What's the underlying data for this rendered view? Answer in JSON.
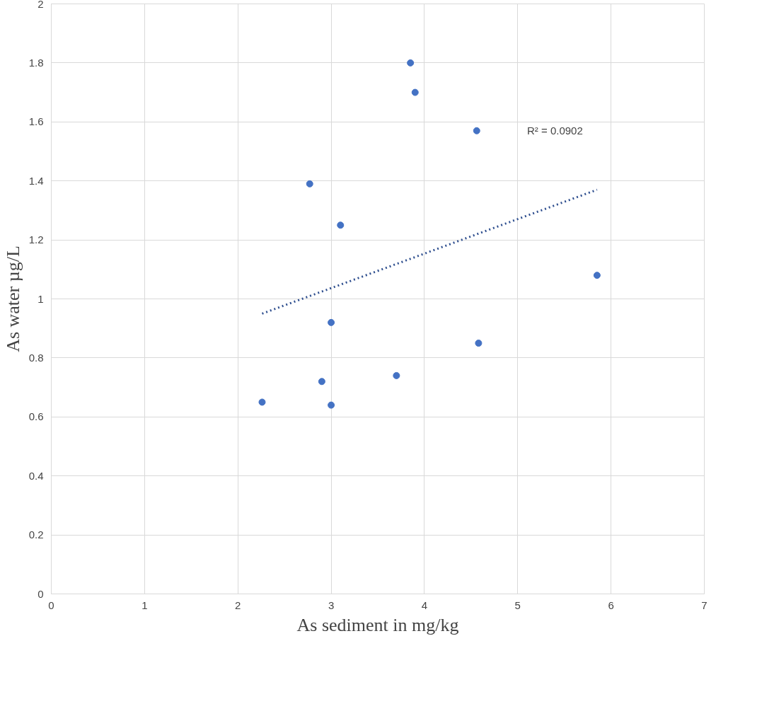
{
  "chart_data": {
    "type": "scatter",
    "xlabel": "As sediment in mg/kg",
    "ylabel": "As water µg/L",
    "xlim": [
      0,
      7
    ],
    "ylim": [
      0,
      2
    ],
    "xticks": [
      0,
      1,
      2,
      3,
      4,
      5,
      6,
      7
    ],
    "yticks": [
      0,
      0.2,
      0.4,
      0.6,
      0.8,
      1,
      1.2,
      1.4,
      1.6,
      1.8,
      2
    ],
    "grid": true,
    "annotations": [
      "R² = 0.0902"
    ],
    "series": [
      {
        "marker": "circle",
        "color": "#4472c4",
        "x": [
          2.26,
          2.77,
          2.9,
          3.0,
          3.0,
          3.1,
          3.7,
          3.85,
          3.9,
          4.56,
          4.58,
          5.85
        ],
        "values": [
          0.65,
          1.39,
          0.72,
          0.64,
          0.92,
          1.25,
          0.74,
          1.8,
          1.7,
          1.57,
          0.85,
          1.08
        ]
      },
      {
        "type": "line",
        "marker": "none",
        "color": "#2f4f8f",
        "line_style": "dotted",
        "x": [
          2.26,
          5.85
        ],
        "values": [
          0.95,
          1.37
        ]
      }
    ]
  }
}
